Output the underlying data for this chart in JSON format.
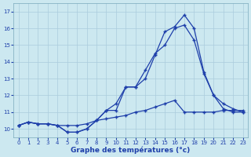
{
  "xlabel": "Graphe des températures (°c)",
  "background_color": "#cce8f0",
  "grid_color": "#aaccdd",
  "line_color": "#1e3faa",
  "xlim_min": -0.5,
  "xlim_max": 23.5,
  "ylim_min": 9.5,
  "ylim_max": 17.5,
  "yticks": [
    10,
    11,
    12,
    13,
    14,
    15,
    16,
    17
  ],
  "xticks": [
    0,
    1,
    2,
    3,
    4,
    5,
    6,
    7,
    8,
    9,
    10,
    11,
    12,
    13,
    14,
    15,
    16,
    17,
    18,
    19,
    20,
    21,
    22,
    23
  ],
  "s1_x": [
    0,
    1,
    2,
    3,
    4,
    5,
    6,
    7,
    8,
    9,
    10,
    11,
    12,
    13,
    14,
    15,
    16,
    17,
    18,
    19,
    20,
    21,
    22,
    23
  ],
  "s1_y": [
    10.2,
    10.4,
    10.3,
    10.3,
    10.2,
    9.8,
    9.8,
    10.0,
    10.5,
    11.1,
    11.1,
    12.5,
    12.5,
    13.0,
    14.4,
    15.8,
    16.1,
    16.8,
    16.0,
    13.4,
    12.0,
    11.2,
    11.0,
    11.0
  ],
  "s2_x": [
    0,
    1,
    2,
    3,
    4,
    5,
    6,
    7,
    8,
    9,
    10,
    11,
    12,
    13,
    14,
    15,
    16,
    17,
    18,
    19,
    20,
    21,
    22,
    23
  ],
  "s2_y": [
    10.2,
    10.4,
    10.3,
    10.3,
    10.2,
    9.8,
    9.8,
    10.0,
    10.5,
    11.1,
    11.5,
    12.5,
    12.5,
    13.5,
    14.5,
    15.0,
    16.0,
    16.2,
    15.3,
    13.3,
    12.0,
    11.5,
    11.2,
    11.0
  ],
  "s3_x": [
    0,
    1,
    2,
    3,
    4,
    5,
    6,
    7,
    8,
    9,
    10,
    11,
    12,
    13,
    14,
    15,
    16,
    17,
    18,
    19,
    20,
    21,
    22,
    23
  ],
  "s3_y": [
    10.2,
    10.4,
    10.3,
    10.3,
    10.2,
    10.2,
    10.2,
    10.3,
    10.5,
    10.6,
    10.7,
    10.8,
    11.0,
    11.1,
    11.3,
    11.5,
    11.7,
    11.0,
    11.0,
    11.0,
    11.0,
    11.1,
    11.1,
    11.1
  ]
}
